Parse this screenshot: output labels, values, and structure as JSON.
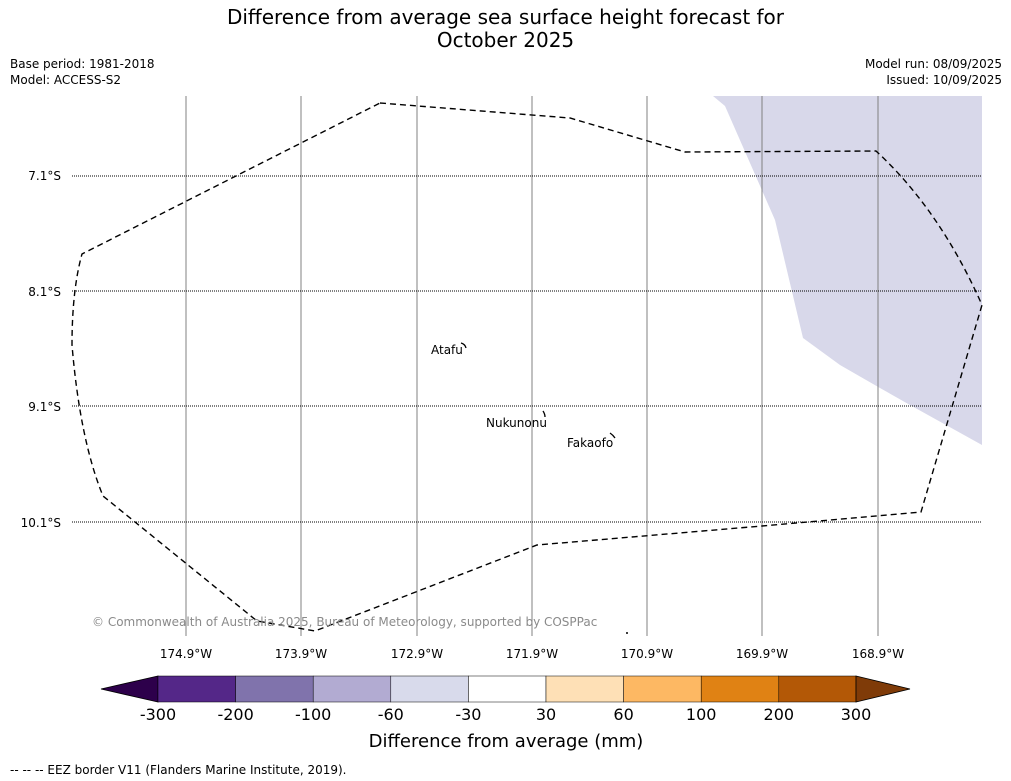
{
  "title": {
    "line1": "Difference from average sea surface height forecast for",
    "line2": "October 2025"
  },
  "meta_left": {
    "base_period": "Base period: 1981-2018",
    "model": "Model: ACCESS-S2"
  },
  "meta_right": {
    "model_run": "Model run: 08/09/2025",
    "issued": "Issued: 10/09/2025"
  },
  "map": {
    "latitude_labels": [
      "7.1°S",
      "8.1°S",
      "9.1°S",
      "10.1°S"
    ],
    "longitude_labels": [
      "174.9°W",
      "173.9°W",
      "172.9°W",
      "171.9°W",
      "170.9°W",
      "169.9°W",
      "168.9°W"
    ],
    "places": [
      {
        "name": "Atafu",
        "lon": "172.5°W",
        "lat": "8.55°S"
      },
      {
        "name": "Nukunonu",
        "lon": "171.85°W",
        "lat": "9.17°S"
      },
      {
        "name": "Fakaofo",
        "lon": "171.25°W",
        "lat": "9.37°S"
      }
    ],
    "anomaly_region_category": "-60 to -30",
    "copyright": "© Commonwealth of Australia 2025, Bureau of Meteorology, supported by COSPPac",
    "eez_line_style": "dashed",
    "colors": {
      "anomaly_fill": "#d8d8ea",
      "grid_meridian": "#808080",
      "grid_parallel": "#000000",
      "eez_border": "#000000"
    }
  },
  "colorbar": {
    "title": "Difference from average (mm)",
    "tick_labels": [
      "-300",
      "-200",
      "-100",
      "-60",
      "-30",
      "30",
      "60",
      "100",
      "200",
      "300"
    ],
    "bins": [
      {
        "range": "< -300",
        "color": "#2d004b"
      },
      {
        "range": "-300 to -200",
        "color": "#542788"
      },
      {
        "range": "-200 to -100",
        "color": "#8073ac"
      },
      {
        "range": "-100 to -60",
        "color": "#b2abd2"
      },
      {
        "range": "-60 to -30",
        "color": "#d8daeb"
      },
      {
        "range": "-30 to 30",
        "color": "#ffffff"
      },
      {
        "range": "30 to 60",
        "color": "#fee0b6"
      },
      {
        "range": "60 to 100",
        "color": "#fdb863"
      },
      {
        "range": "100 to 200",
        "color": "#e08214"
      },
      {
        "range": "200 to 300",
        "color": "#b35806"
      },
      {
        "range": "> 300",
        "color": "#7f3b08"
      }
    ]
  },
  "legend_note": "--  --  -- EEZ border V11 (Flanders Marine Institute, 2019)."
}
